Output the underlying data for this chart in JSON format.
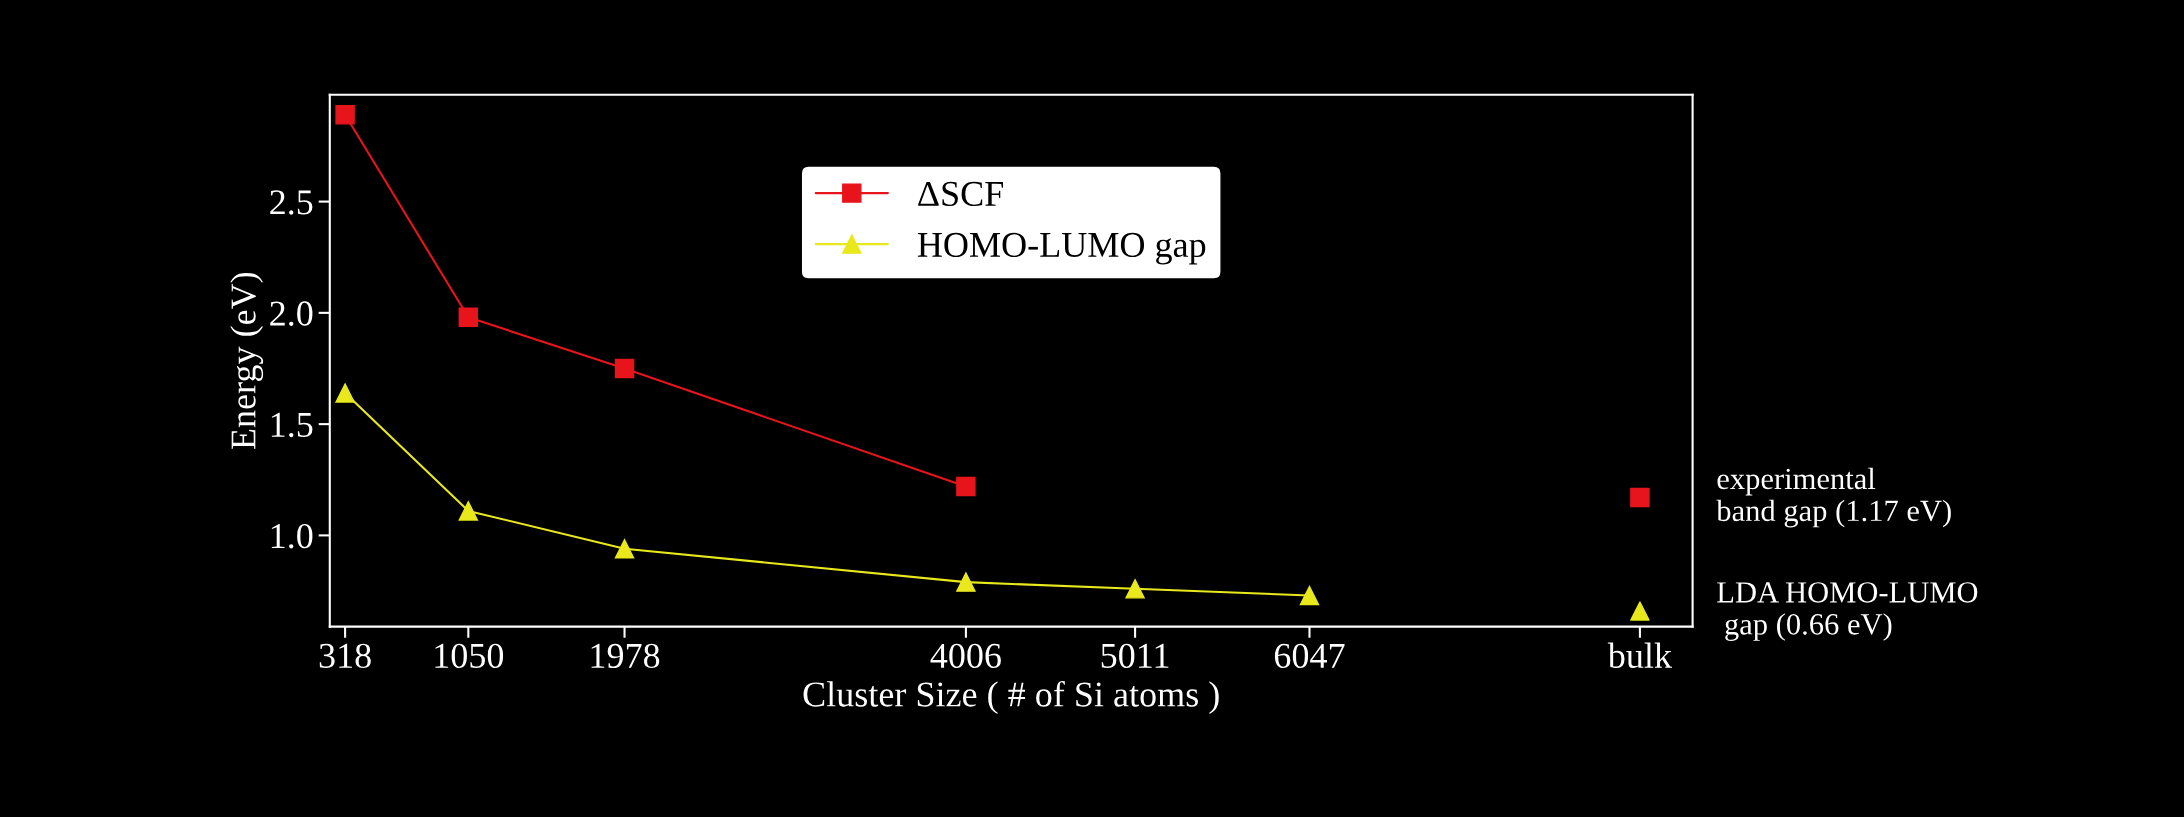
{
  "chart_data": {
    "type": "line",
    "xlabel": "Cluster Size ( # of Si atoms )",
    "ylabel": "Energy (eV)",
    "xlim": [
      227,
      8323
    ],
    "ylim": [
      0.59,
      2.98
    ],
    "xticks": [
      318,
      1050,
      1978,
      4006,
      5011,
      6047,
      {
        "value": 8010,
        "label": "bulk"
      }
    ],
    "yticks": [
      {
        "value": 1.0,
        "label": "1.0"
      },
      {
        "value": 1.5,
        "label": "1.5"
      },
      {
        "value": 2.0,
        "label": "2.0"
      },
      {
        "value": 2.5,
        "label": "2.5"
      }
    ],
    "series": [
      {
        "name": "ΔSCF",
        "color": "#e8141c",
        "marker": "square",
        "x": [
          318,
          1050,
          1978,
          4006
        ],
        "values": [
          2.89,
          1.98,
          1.75,
          1.22
        ]
      },
      {
        "name": "HOMO-LUMO gap",
        "color": "#e8e81c",
        "marker": "triangle",
        "x": [
          318,
          1050,
          1978,
          4006,
          5011,
          6047
        ],
        "values": [
          1.64,
          1.11,
          0.94,
          0.79,
          0.76,
          0.73
        ]
      },
      {
        "type": "scatter",
        "color": "#e8141c",
        "marker": "square",
        "x": [
          8010
        ],
        "values": [
          1.17
        ]
      },
      {
        "type": "scatter",
        "color": "#e8e81c",
        "marker": "triangle",
        "x": [
          8010
        ],
        "values": [
          0.66
        ]
      }
    ],
    "annotations": [
      {
        "text": "experimental\nband gap (1.17 eV)",
        "x": 8010,
        "y": 1.17
      },
      {
        "text": "LDA HOMO-LUMO\n gap (0.66 eV)",
        "x": 8010,
        "y": 0.66
      }
    ],
    "legend": "top",
    "grid": false
  }
}
